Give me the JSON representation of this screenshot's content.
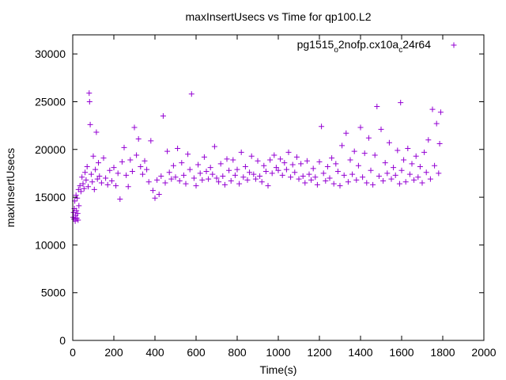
{
  "chart_data": {
    "type": "scatter",
    "title": "maxInsertUsecs vs Time for qp100.L2",
    "xlabel": "Time(s)",
    "ylabel": "maxInsertUsecs",
    "xlim": [
      0,
      2000
    ],
    "ylim": [
      0,
      32000
    ],
    "xticks": [
      "0",
      "200",
      "400",
      "600",
      "800",
      "1000",
      "1200",
      "1400",
      "1600",
      "1800",
      "2000"
    ],
    "yticks": [
      "0",
      "5000",
      "10000",
      "15000",
      "20000",
      "25000",
      "30000"
    ],
    "grid": false,
    "legend_position": "top-right",
    "marker": "plus",
    "series": [
      {
        "name_parts": {
          "a": "pg1515",
          "s1": "o",
          "b": "2nofp.cx10a",
          "s2": "c",
          "c": "24r64"
        },
        "color": "#9400d3",
        "points": [
          [
            2,
            12900
          ],
          [
            4,
            13400
          ],
          [
            6,
            12700
          ],
          [
            8,
            13800
          ],
          [
            10,
            14600
          ],
          [
            12,
            12500
          ],
          [
            14,
            13100
          ],
          [
            16,
            15200
          ],
          [
            18,
            13600
          ],
          [
            20,
            12800
          ],
          [
            22,
            14900
          ],
          [
            24,
            13300
          ],
          [
            26,
            12600
          ],
          [
            28,
            15800
          ],
          [
            30,
            14100
          ],
          [
            35,
            16200
          ],
          [
            40,
            15600
          ],
          [
            45,
            17100
          ],
          [
            50,
            16400
          ],
          [
            55,
            15900
          ],
          [
            60,
            17600
          ],
          [
            65,
            16800
          ],
          [
            70,
            18200
          ],
          [
            75,
            16100
          ],
          [
            80,
            25900
          ],
          [
            82,
            25000
          ],
          [
            85,
            22600
          ],
          [
            90,
            17400
          ],
          [
            95,
            16600
          ],
          [
            100,
            19300
          ],
          [
            105,
            15800
          ],
          [
            110,
            17900
          ],
          [
            115,
            21800
          ],
          [
            120,
            16900
          ],
          [
            125,
            18600
          ],
          [
            130,
            17200
          ],
          [
            140,
            16500
          ],
          [
            150,
            19100
          ],
          [
            160,
            17000
          ],
          [
            170,
            16300
          ],
          [
            180,
            17800
          ],
          [
            190,
            16700
          ],
          [
            200,
            18100
          ],
          [
            210,
            16200
          ],
          [
            220,
            17500
          ],
          [
            230,
            14800
          ],
          [
            240,
            18700
          ],
          [
            250,
            20200
          ],
          [
            260,
            17300
          ],
          [
            270,
            16100
          ],
          [
            280,
            18900
          ],
          [
            290,
            17700
          ],
          [
            300,
            22300
          ],
          [
            310,
            19400
          ],
          [
            320,
            21100
          ],
          [
            330,
            18200
          ],
          [
            340,
            17400
          ],
          [
            350,
            18800
          ],
          [
            360,
            17900
          ],
          [
            370,
            16600
          ],
          [
            380,
            20900
          ],
          [
            390,
            15700
          ],
          [
            400,
            14900
          ],
          [
            410,
            16800
          ],
          [
            420,
            15300
          ],
          [
            430,
            17200
          ],
          [
            440,
            23500
          ],
          [
            450,
            16500
          ],
          [
            460,
            19800
          ],
          [
            470,
            17600
          ],
          [
            480,
            16900
          ],
          [
            490,
            18300
          ],
          [
            500,
            17100
          ],
          [
            510,
            20100
          ],
          [
            520,
            16700
          ],
          [
            530,
            18600
          ],
          [
            540,
            17300
          ],
          [
            550,
            16400
          ],
          [
            560,
            19500
          ],
          [
            570,
            17900
          ],
          [
            578,
            25800
          ],
          [
            590,
            17000
          ],
          [
            600,
            16200
          ],
          [
            610,
            18400
          ],
          [
            620,
            17500
          ],
          [
            630,
            16800
          ],
          [
            640,
            19200
          ],
          [
            650,
            17700
          ],
          [
            660,
            16900
          ],
          [
            670,
            18100
          ],
          [
            680,
            17400
          ],
          [
            690,
            20300
          ],
          [
            700,
            17000
          ],
          [
            710,
            16600
          ],
          [
            720,
            18500
          ],
          [
            730,
            17200
          ],
          [
            740,
            16300
          ],
          [
            750,
            19000
          ],
          [
            760,
            17800
          ],
          [
            770,
            16700
          ],
          [
            780,
            18900
          ],
          [
            790,
            17300
          ],
          [
            800,
            17900
          ],
          [
            810,
            16400
          ],
          [
            820,
            19700
          ],
          [
            830,
            17100
          ],
          [
            840,
            18200
          ],
          [
            850,
            16800
          ],
          [
            860,
            17600
          ],
          [
            870,
            19300
          ],
          [
            880,
            17400
          ],
          [
            890,
            16900
          ],
          [
            900,
            18800
          ],
          [
            910,
            17200
          ],
          [
            920,
            16600
          ],
          [
            930,
            18300
          ],
          [
            940,
            17700
          ],
          [
            950,
            16200
          ],
          [
            960,
            18900
          ],
          [
            970,
            17500
          ],
          [
            980,
            19400
          ],
          [
            990,
            18100
          ],
          [
            1000,
            17800
          ],
          [
            1010,
            19000
          ],
          [
            1020,
            17300
          ],
          [
            1030,
            18600
          ],
          [
            1040,
            17900
          ],
          [
            1050,
            19700
          ],
          [
            1060,
            17100
          ],
          [
            1070,
            18400
          ],
          [
            1080,
            17600
          ],
          [
            1090,
            19200
          ],
          [
            1100,
            16900
          ],
          [
            1110,
            18500
          ],
          [
            1120,
            17200
          ],
          [
            1130,
            16500
          ],
          [
            1140,
            18800
          ],
          [
            1150,
            17400
          ],
          [
            1160,
            16800
          ],
          [
            1170,
            18000
          ],
          [
            1180,
            17100
          ],
          [
            1190,
            16300
          ],
          [
            1200,
            18700
          ],
          [
            1210,
            22400
          ],
          [
            1220,
            17500
          ],
          [
            1230,
            16700
          ],
          [
            1240,
            18200
          ],
          [
            1250,
            17000
          ],
          [
            1260,
            19100
          ],
          [
            1270,
            16400
          ],
          [
            1280,
            18500
          ],
          [
            1290,
            17700
          ],
          [
            1300,
            16200
          ],
          [
            1310,
            20400
          ],
          [
            1320,
            17300
          ],
          [
            1330,
            21700
          ],
          [
            1340,
            16600
          ],
          [
            1350,
            18900
          ],
          [
            1360,
            17400
          ],
          [
            1370,
            19800
          ],
          [
            1380,
            16800
          ],
          [
            1390,
            18300
          ],
          [
            1400,
            22300
          ],
          [
            1410,
            17100
          ],
          [
            1420,
            19600
          ],
          [
            1430,
            16500
          ],
          [
            1440,
            21200
          ],
          [
            1450,
            17800
          ],
          [
            1460,
            16300
          ],
          [
            1470,
            19400
          ],
          [
            1480,
            24500
          ],
          [
            1490,
            17200
          ],
          [
            1500,
            22100
          ],
          [
            1510,
            16700
          ],
          [
            1520,
            18600
          ],
          [
            1530,
            17500
          ],
          [
            1540,
            20700
          ],
          [
            1550,
            16900
          ],
          [
            1560,
            18100
          ],
          [
            1570,
            17300
          ],
          [
            1580,
            19900
          ],
          [
            1590,
            16400
          ],
          [
            1595,
            24900
          ],
          [
            1600,
            17800
          ],
          [
            1610,
            18900
          ],
          [
            1620,
            16600
          ],
          [
            1630,
            20100
          ],
          [
            1640,
            17400
          ],
          [
            1650,
            18500
          ],
          [
            1660,
            16800
          ],
          [
            1670,
            19300
          ],
          [
            1680,
            17100
          ],
          [
            1690,
            18200
          ],
          [
            1700,
            16500
          ],
          [
            1710,
            19700
          ],
          [
            1720,
            17600
          ],
          [
            1730,
            21000
          ],
          [
            1740,
            16900
          ],
          [
            1750,
            24200
          ],
          [
            1760,
            18300
          ],
          [
            1770,
            22700
          ],
          [
            1780,
            17500
          ],
          [
            1785,
            20600
          ],
          [
            1790,
            23900
          ]
        ]
      }
    ]
  }
}
